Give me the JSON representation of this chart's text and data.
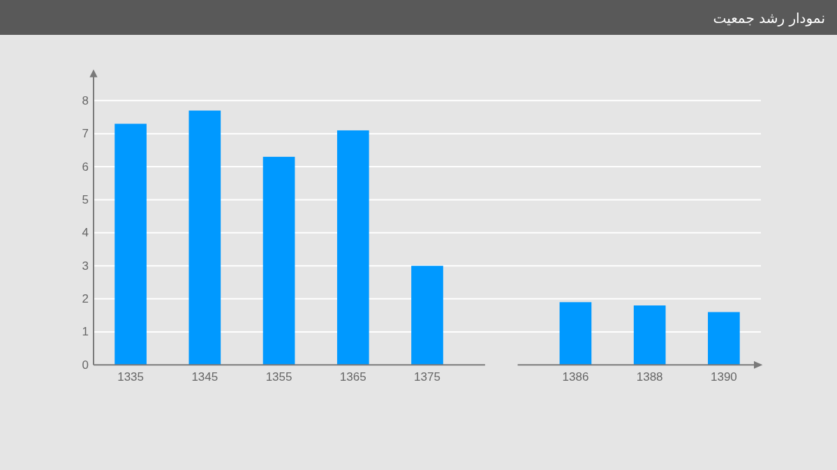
{
  "chart_data": {
    "type": "bar",
    "title": "نمودار رشد جمعیت",
    "categories": [
      "1335",
      "1345",
      "1355",
      "1365",
      "1375",
      null,
      "1386",
      "1388",
      "1390"
    ],
    "values": [
      7.3,
      7.7,
      6.3,
      7.1,
      3.0,
      null,
      1.9,
      1.8,
      1.6
    ],
    "color": "#0099ff",
    "ylim": [
      0,
      8.9
    ],
    "yticks": [
      0,
      1,
      2,
      3,
      4,
      5,
      6,
      7,
      8
    ],
    "grid": "y"
  }
}
